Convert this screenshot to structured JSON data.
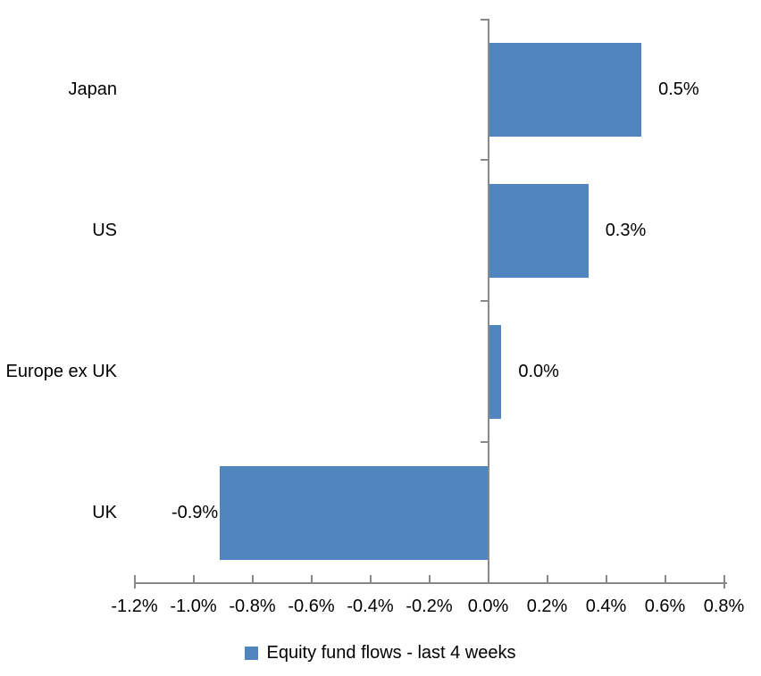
{
  "chart_data": {
    "type": "bar",
    "orientation": "horizontal",
    "title": "",
    "categories": [
      "Japan",
      "US",
      "Europe ex UK",
      "UK"
    ],
    "values": [
      0.52,
      0.34,
      0.045,
      -0.91
    ],
    "value_labels": [
      "0.5%",
      "0.3%",
      "0.0%",
      "-0.9%"
    ],
    "series": [
      {
        "name": "Equity fund flows - last 4 weeks",
        "values": [
          0.52,
          0.34,
          0.045,
          -0.91
        ]
      }
    ],
    "x_axis": {
      "unit": "%",
      "min": -1.2,
      "max": 0.8,
      "step": 0.2,
      "tick_labels": [
        "-1.2%",
        "-1.0%",
        "-0.8%",
        "-0.6%",
        "-0.4%",
        "-0.2%",
        "0.0%",
        "0.2%",
        "0.4%",
        "0.6%",
        "0.8%"
      ]
    },
    "legend": {
      "position": "bottom",
      "entries": [
        "Equity fund flows - last 4 weeks"
      ]
    },
    "grid": false,
    "colors": {
      "bar": "#4E86BD",
      "axis": "#898989",
      "text": "#000000",
      "background": "#FFFFFF"
    }
  },
  "legend": {
    "label": "Equity fund flows - last 4 weeks"
  }
}
